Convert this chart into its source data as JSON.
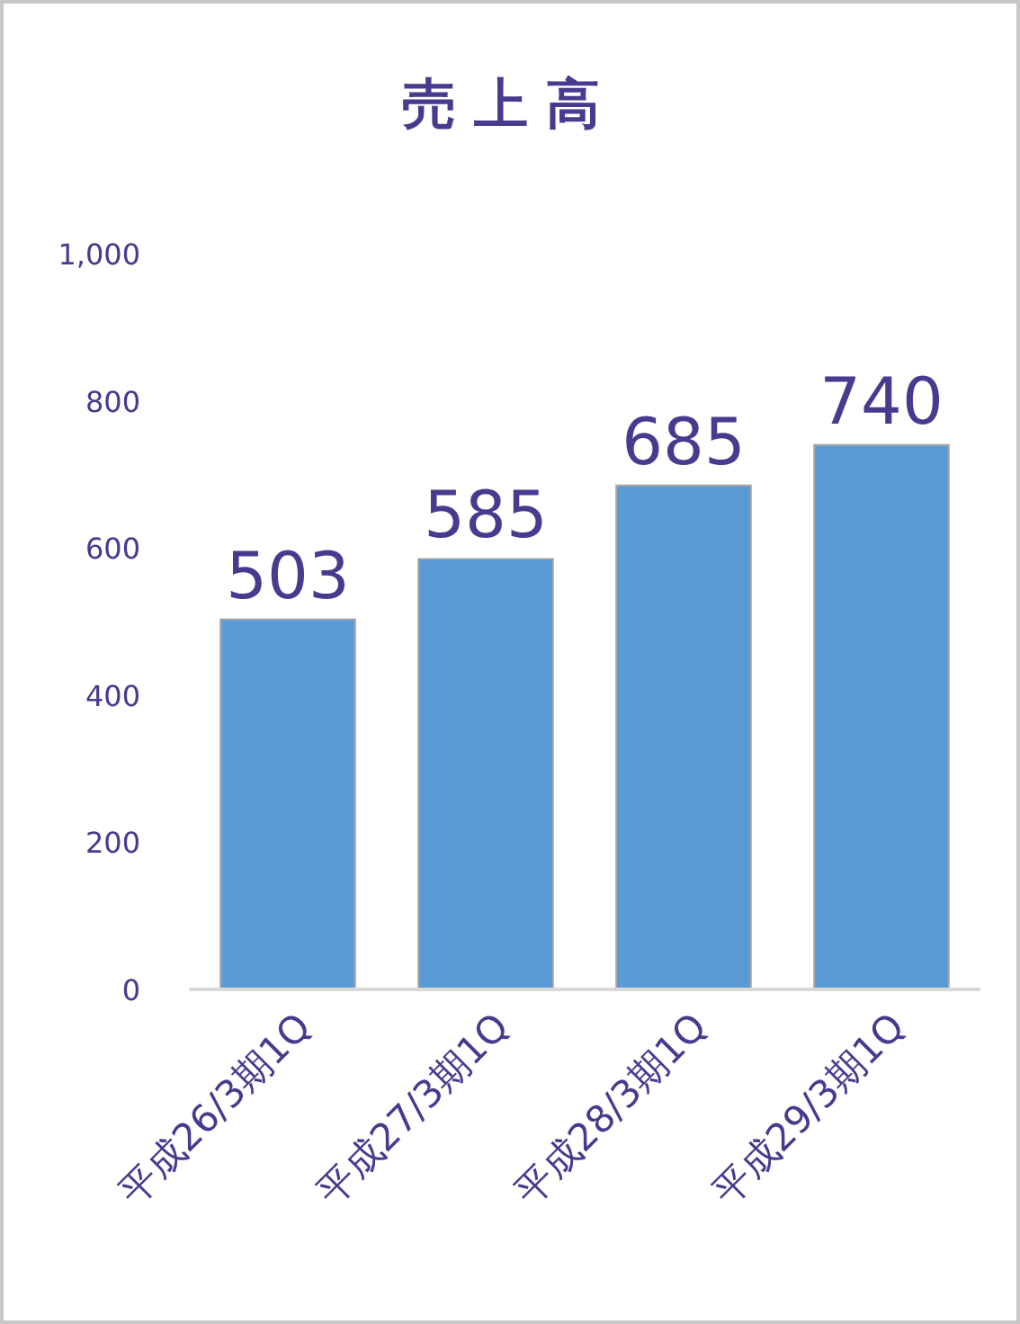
{
  "chart_data": {
    "type": "bar",
    "title": "売上高",
    "categories": [
      "平成26/3期1Q",
      "平成27/3期1Q",
      "平成28/3期1Q",
      "平成29/3期1Q"
    ],
    "values": [
      503,
      585,
      685,
      740
    ],
    "color": "#5b9bd5",
    "ylim": [
      0,
      1000
    ],
    "yticks": [
      0,
      200,
      400,
      600,
      800,
      {
        "value": 1000,
        "label": "1,000"
      }
    ],
    "grid": false,
    "data_labels": true
  }
}
